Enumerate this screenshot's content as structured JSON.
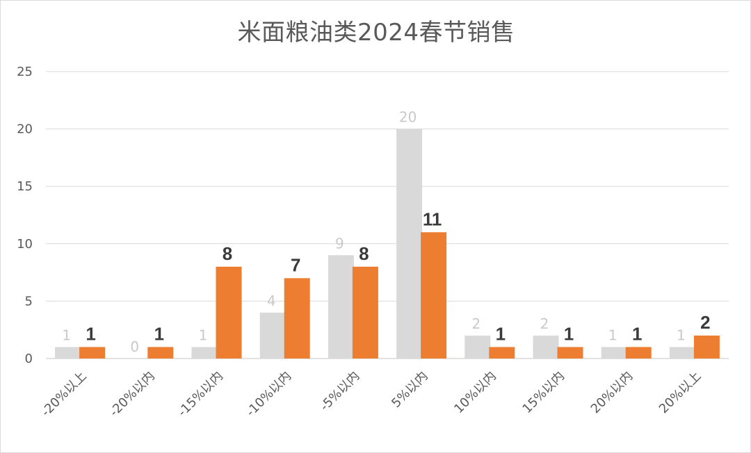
{
  "chart_data": {
    "type": "bar",
    "title": "米面粮油类2024春节销售",
    "categories": [
      "-20%以上",
      "-20%以内",
      "-15%以内",
      "-10%以内",
      "-5%以内",
      "5%以内",
      "10%以内",
      "15%以内",
      "20%以内",
      "20%以上"
    ],
    "series": [
      {
        "values": [
          1,
          0,
          1,
          4,
          9,
          20,
          2,
          2,
          1,
          1
        ],
        "color": "#d9d9d9"
      },
      {
        "values": [
          1,
          1,
          8,
          7,
          8,
          11,
          1,
          1,
          1,
          2
        ],
        "color": "#ed7d31"
      }
    ],
    "ylim": [
      0,
      25
    ],
    "yticks": [
      0,
      5,
      10,
      15,
      20,
      25
    ],
    "grid": true,
    "legend": "none"
  }
}
